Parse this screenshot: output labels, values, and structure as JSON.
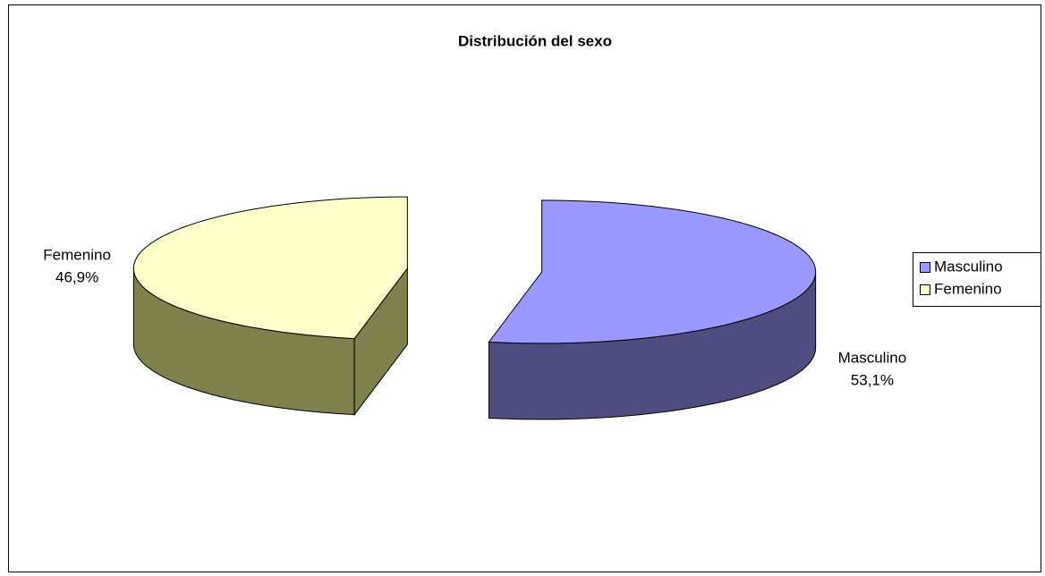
{
  "chart_data": {
    "type": "pie",
    "title": "Distribución del sexo",
    "categories": [
      "Masculino",
      "Femenino"
    ],
    "values": [
      53.1,
      46.9
    ],
    "value_labels": [
      "53,1%",
      "46,9%"
    ],
    "colors": [
      "#9999ff",
      "#ffffcc"
    ],
    "side_colors": [
      "#4d4d80",
      "#80804d"
    ],
    "three_d": true,
    "exploded": true,
    "legend": "right"
  }
}
